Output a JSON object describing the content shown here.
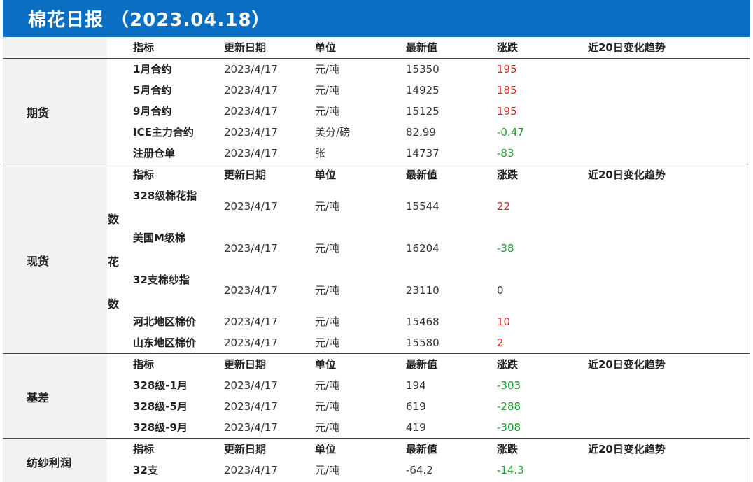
{
  "title": "棉花日报 （2023.04.18）",
  "header": {
    "indicator": "指标",
    "date": "更新日期",
    "unit": "单位",
    "latest": "最新值",
    "change": "涨跌",
    "trend": "近20日变化趋势"
  },
  "sections": [
    {
      "name": "期货",
      "show_header": false,
      "rows": [
        {
          "indicator": "1月合约",
          "date": "2023/4/17",
          "unit": "元/吨",
          "latest": "15350",
          "change": "195",
          "dir": "up"
        },
        {
          "indicator": "5月合约",
          "date": "2023/4/17",
          "unit": "元/吨",
          "latest": "14925",
          "change": "185",
          "dir": "up"
        },
        {
          "indicator": "9月合约",
          "date": "2023/4/17",
          "unit": "元/吨",
          "latest": "15125",
          "change": "195",
          "dir": "up"
        },
        {
          "indicator": "ICE主力合约",
          "date": "2023/4/17",
          "unit": "美分/磅",
          "latest": "82.99",
          "change": "-0.47",
          "dir": "down"
        },
        {
          "indicator": "注册仓单",
          "date": "2023/4/17",
          "unit": "张",
          "latest": "14737",
          "change": "-83",
          "dir": "down"
        }
      ]
    },
    {
      "name": "现货",
      "vertical_label": [
        "数",
        "花",
        "数"
      ],
      "rows": [
        {
          "indicator": "328级棉花指",
          "date": "2023/4/17",
          "unit": "元/吨",
          "latest": "15544",
          "change": "22",
          "dir": "up"
        },
        {
          "indicator": "美国M级棉",
          "date": "2023/4/17",
          "unit": "元/吨",
          "latest": "16204",
          "change": "-38",
          "dir": "down"
        },
        {
          "indicator": "32支棉纱指",
          "date": "2023/4/17",
          "unit": "元/吨",
          "latest": "23110",
          "change": "0",
          "dir": "flat"
        },
        {
          "indicator": "河北地区棉价",
          "date": "2023/4/17",
          "unit": "元/吨",
          "latest": "15468",
          "change": "10",
          "dir": "up"
        },
        {
          "indicator": "山东地区棉价",
          "date": "2023/4/17",
          "unit": "元/吨",
          "latest": "15580",
          "change": "2",
          "dir": "up"
        }
      ]
    },
    {
      "name": "基差",
      "rows": [
        {
          "indicator": "328级-1月",
          "date": "2023/4/17",
          "unit": "元/吨",
          "latest": "194",
          "change": "-303",
          "dir": "down"
        },
        {
          "indicator": "328级-5月",
          "date": "2023/4/17",
          "unit": "元/吨",
          "latest": "619",
          "change": "-288",
          "dir": "down"
        },
        {
          "indicator": "328级-9月",
          "date": "2023/4/17",
          "unit": "元/吨",
          "latest": "419",
          "change": "-308",
          "dir": "down"
        }
      ]
    },
    {
      "name": "纺纱利润",
      "rows": [
        {
          "indicator": "32支",
          "date": "2023/4/17",
          "unit": "元/吨",
          "latest": "-64.2",
          "change": "-14.3",
          "dir": "down"
        }
      ]
    }
  ],
  "colors": {
    "up": "#e02020",
    "down": "#1e9a2e",
    "title_bg": "#0a6fc2"
  }
}
